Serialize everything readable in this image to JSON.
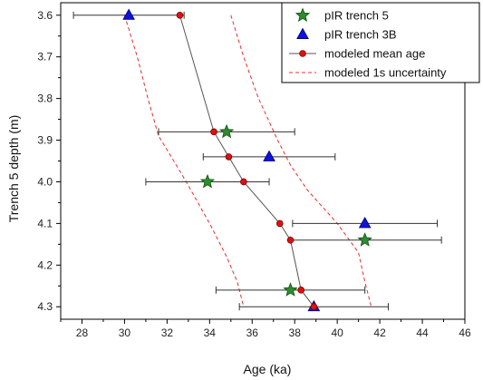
{
  "chart_data": {
    "type": "scatter",
    "xlabel": "Age (ka)",
    "ylabel": "Trench 5 depth (m)",
    "xlim": [
      27,
      46
    ],
    "ylim": [
      4.33,
      3.57
    ],
    "x_ticks": [
      28,
      30,
      32,
      34,
      36,
      38,
      40,
      42,
      44,
      46
    ],
    "y_ticks": [
      3.6,
      3.7,
      3.8,
      3.9,
      4.0,
      4.1,
      4.2,
      4.3
    ],
    "x_tick_labels": [
      "28",
      "30",
      "32",
      "34",
      "36",
      "38",
      "40",
      "42",
      "44",
      "46"
    ],
    "y_tick_labels": [
      "3.6",
      "3.7",
      "3.8",
      "3.9",
      "4.0",
      "4.1",
      "4.2",
      "4.3"
    ],
    "grid": false,
    "legend_position": "top-right",
    "series": [
      {
        "name": "pIR trench 5",
        "marker": "star",
        "color": "#2e8b2e",
        "points": [
          {
            "x": 34.8,
            "y": 3.88
          },
          {
            "x": 33.9,
            "y": 4.0
          },
          {
            "x": 41.3,
            "y": 4.14
          },
          {
            "x": 37.8,
            "y": 4.26
          }
        ]
      },
      {
        "name": "pIR trench 3B",
        "marker": "triangle",
        "color": "#1010e0",
        "points": [
          {
            "x": 30.2,
            "y": 3.6
          },
          {
            "x": 36.8,
            "y": 3.94
          },
          {
            "x": 41.3,
            "y": 4.1
          },
          {
            "x": 38.9,
            "y": 4.3
          }
        ]
      },
      {
        "name": "modeled mean age",
        "marker": "circle-line",
        "color": "#e01010",
        "line_color": "#555555",
        "points": [
          {
            "x": 32.6,
            "y": 3.6,
            "xerr_low": 27.6,
            "xerr_high": 32.8
          },
          {
            "x": 34.2,
            "y": 3.88,
            "xerr_low": 31.6,
            "xerr_high": 38.0
          },
          {
            "x": 34.9,
            "y": 3.94,
            "xerr_low": 33.7,
            "xerr_high": 39.9
          },
          {
            "x": 35.6,
            "y": 4.0,
            "xerr_low": 31.0,
            "xerr_high": 36.8
          },
          {
            "x": 37.3,
            "y": 4.1,
            "xerr_low": 37.9,
            "xerr_high": 44.7
          },
          {
            "x": 37.8,
            "y": 4.14,
            "xerr_low": 37.8,
            "xerr_high": 44.9
          },
          {
            "x": 38.3,
            "y": 4.26,
            "xerr_low": 34.3,
            "xerr_high": 41.3
          },
          {
            "x": 38.9,
            "y": 4.3,
            "xerr_low": 35.4,
            "xerr_high": 42.4
          }
        ]
      },
      {
        "name": "modeled 1s uncertainty",
        "marker": "dashed",
        "color": "#e03030",
        "bounds": [
          {
            "points": [
              {
                "x": 30.0,
                "y": 3.6
              },
              {
                "x": 30.6,
                "y": 3.7
              },
              {
                "x": 31.1,
                "y": 3.8
              },
              {
                "x": 31.6,
                "y": 3.89
              },
              {
                "x": 32.2,
                "y": 3.94
              },
              {
                "x": 32.9,
                "y": 4.0
              },
              {
                "x": 34.0,
                "y": 4.1
              },
              {
                "x": 34.8,
                "y": 4.18
              },
              {
                "x": 35.3,
                "y": 4.24
              },
              {
                "x": 35.6,
                "y": 4.3
              }
            ]
          },
          {
            "points": [
              {
                "x": 35.0,
                "y": 3.6
              },
              {
                "x": 35.6,
                "y": 3.7
              },
              {
                "x": 36.3,
                "y": 3.8
              },
              {
                "x": 37.2,
                "y": 3.9
              },
              {
                "x": 37.8,
                "y": 3.96
              },
              {
                "x": 38.6,
                "y": 4.02
              },
              {
                "x": 40.0,
                "y": 4.1
              },
              {
                "x": 41.0,
                "y": 4.17
              },
              {
                "x": 41.3,
                "y": 4.24
              },
              {
                "x": 41.6,
                "y": 4.3
              }
            ]
          }
        ]
      }
    ]
  }
}
